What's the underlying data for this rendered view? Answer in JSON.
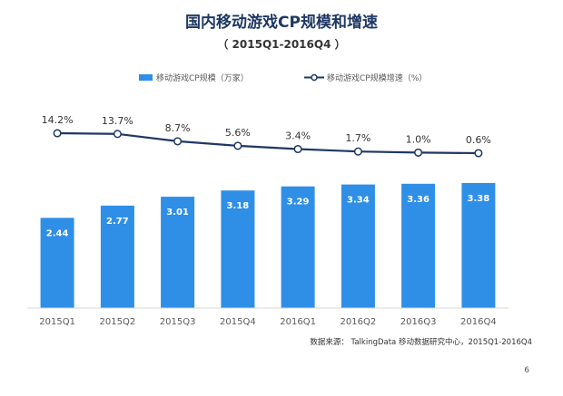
{
  "page": {
    "title": "国内移动游戏CP规模和增速",
    "subtitle": "（ 2015Q1-2016Q4 ）",
    "source": "数据来源：  TalkingData 移动数据研究中心，2015Q1-2016Q4",
    "page_number": "6"
  },
  "colors": {
    "bar": "#2f8fe6",
    "line": "#1f3864",
    "marker_fill": "#ffffff",
    "axis_text": "#595959",
    "label_text": "#333333",
    "bar_label": "#ffffff"
  },
  "chart_data": {
    "type": "bar",
    "categories": [
      "2015Q1",
      "2015Q2",
      "2015Q3",
      "2015Q4",
      "2016Q1",
      "2016Q2",
      "2016Q3",
      "2016Q4"
    ],
    "series": [
      {
        "name": "移动游戏CP规模（万家）",
        "type": "bar",
        "values": [
          2.44,
          2.77,
          3.01,
          3.18,
          3.29,
          3.34,
          3.36,
          3.38
        ],
        "value_labels": [
          "2.44",
          "2.77",
          "3.01",
          "3.18",
          "3.29",
          "3.34",
          "3.36",
          "3.38"
        ]
      },
      {
        "name": "移动游戏CP规模增速（%）",
        "type": "line",
        "values": [
          14.2,
          13.7,
          8.7,
          5.6,
          3.4,
          1.7,
          1.0,
          0.6
        ],
        "value_labels": [
          "14.2%",
          "13.7%",
          "8.7%",
          "5.6%",
          "3.4%",
          "1.7%",
          "1.0%",
          "0.6%"
        ]
      }
    ],
    "legend_position": "top",
    "grid": false
  }
}
